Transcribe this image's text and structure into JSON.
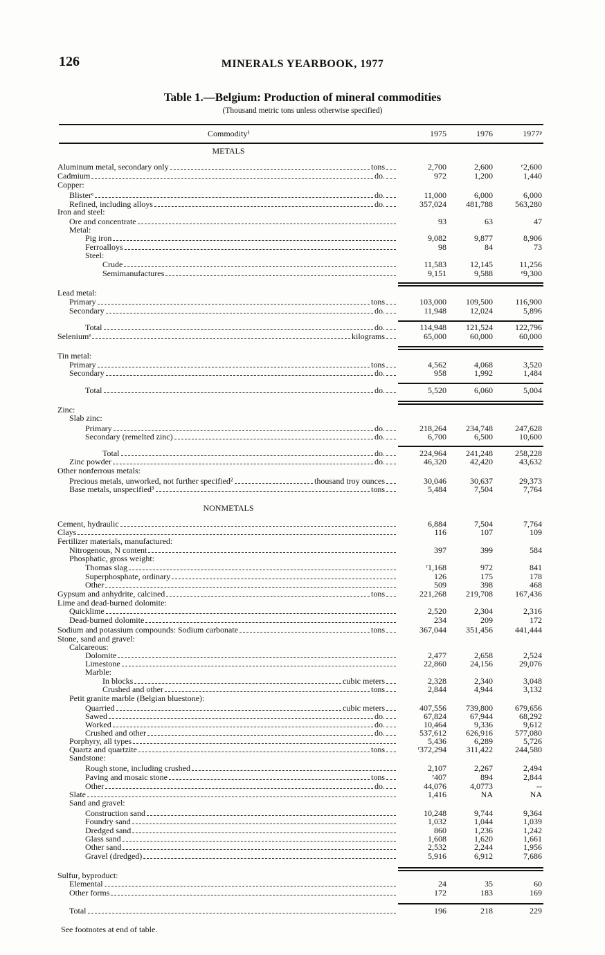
{
  "page_number": "126",
  "running_head": "MINERALS YEARBOOK, 1977",
  "title": "Table 1.—Belgium: Production of mineral commodities",
  "subtitle": "(Thousand metric tons unless otherwise specified)",
  "table": {
    "headers": {
      "commodity": "Commodity¹",
      "y1975": "1975",
      "y1976": "1976",
      "y1977": "1977ᵖ"
    },
    "sections": {
      "metals": "METALS",
      "nonmetals": "NONMETALS"
    },
    "rows": [
      {
        "level": 0,
        "label": "Aluminum metal, secondary only",
        "unit": "tons",
        "values": [
          "2,700",
          "2,600",
          "ᵉ2,600"
        ]
      },
      {
        "level": 0,
        "label": "Cadmium",
        "unit": "do.",
        "values": [
          "972",
          "1,200",
          "1,440"
        ]
      },
      {
        "level": 0,
        "label": "Copper:"
      },
      {
        "level": 1,
        "label": "Blisterᵉ",
        "unit": "do.",
        "values": [
          "11,000",
          "6,000",
          "6,000"
        ]
      },
      {
        "level": 1,
        "label": "Refined, including alloys",
        "unit": "do.",
        "values": [
          "357,024",
          "481,788",
          "563,280"
        ]
      },
      {
        "level": 0,
        "label": "Iron and steel:"
      },
      {
        "level": 1,
        "label": "Ore and concentrate",
        "unit": "",
        "values": [
          "93",
          "63",
          "47"
        ]
      },
      {
        "level": 1,
        "label": "Metal:"
      },
      {
        "level": 2,
        "label": "Pig iron",
        "unit": "",
        "values": [
          "9,082",
          "9,877",
          "8,906"
        ]
      },
      {
        "level": 2,
        "label": "Ferroalloys",
        "unit": "",
        "values": [
          "98",
          "84",
          "73"
        ]
      },
      {
        "level": 2,
        "label": "Steel:"
      },
      {
        "level": 3,
        "label": "Crude",
        "unit": "",
        "values": [
          "11,583",
          "12,145",
          "11,256"
        ]
      },
      {
        "level": 3,
        "label": "Semimanufactures",
        "unit": "",
        "values": [
          "9,151",
          "9,588",
          "ᵉ9,300"
        ]
      },
      {
        "level": 0,
        "label": "Lead metal:"
      },
      {
        "level": 1,
        "label": "Primary",
        "unit": "tons",
        "values": [
          "103,000",
          "109,500",
          "116,900"
        ]
      },
      {
        "level": 1,
        "label": "Secondary",
        "unit": "do.",
        "values": [
          "11,948",
          "12,024",
          "5,896"
        ]
      },
      {
        "level": 2,
        "label": "Total",
        "unit": "do.",
        "values": [
          "114,948",
          "121,524",
          "122,796"
        ]
      },
      {
        "level": 0,
        "label": "Seleniumᵉ",
        "unit": "kilograms",
        "values": [
          "65,000",
          "60,000",
          "60,000"
        ]
      },
      {
        "level": 0,
        "label": "Tin metal:"
      },
      {
        "level": 1,
        "label": "Primary",
        "unit": "tons",
        "values": [
          "4,562",
          "4,068",
          "3,520"
        ]
      },
      {
        "level": 1,
        "label": "Secondary",
        "unit": "do.",
        "values": [
          "958",
          "1,992",
          "1,484"
        ]
      },
      {
        "level": 2,
        "label": "Total",
        "unit": "do.",
        "values": [
          "5,520",
          "6,060",
          "5,004"
        ]
      },
      {
        "level": 0,
        "label": "Zinc:"
      },
      {
        "level": 1,
        "label": "Slab zinc:"
      },
      {
        "level": 2,
        "label": "Primary",
        "unit": "do.",
        "values": [
          "218,264",
          "234,748",
          "247,628"
        ]
      },
      {
        "level": 2,
        "label": "Secondary (remelted zinc)",
        "unit": "do.",
        "values": [
          "6,700",
          "6,500",
          "10,600"
        ]
      },
      {
        "level": 3,
        "label": "Total",
        "unit": "do.",
        "values": [
          "224,964",
          "241,248",
          "258,228"
        ]
      },
      {
        "level": 1,
        "label": "Zinc powder",
        "unit": "do.",
        "values": [
          "46,320",
          "42,420",
          "43,632"
        ]
      },
      {
        "level": 0,
        "label": "Other nonferrous metals:"
      },
      {
        "level": 1,
        "label": "Precious metals, unworked, not further specified²",
        "unit": "thousand troy ounces",
        "values": [
          "30,046",
          "30,637",
          "29,373"
        ]
      },
      {
        "level": 1,
        "label": "Base metals, unspecified³",
        "unit": "tons",
        "values": [
          "5,484",
          "7,504",
          "7,764"
        ]
      },
      {
        "level": 0,
        "label": "Cement, hydraulic",
        "unit": "",
        "values": [
          "6,884",
          "7,504",
          "7,764"
        ]
      },
      {
        "level": 0,
        "label": "Clays",
        "unit": "",
        "values": [
          "116",
          "107",
          "109"
        ]
      },
      {
        "level": 0,
        "label": "Fertilizer materials, manufactured:"
      },
      {
        "level": 1,
        "label": "Nitrogenous, N content",
        "unit": "",
        "values": [
          "397",
          "399",
          "584"
        ]
      },
      {
        "level": 1,
        "label": "Phosphatic, gross weight:"
      },
      {
        "level": 2,
        "label": "Thomas slag",
        "unit": "",
        "values": [
          "ʳ1,168",
          "972",
          "841"
        ]
      },
      {
        "level": 2,
        "label": "Superphosphate, ordinary",
        "unit": "",
        "values": [
          "126",
          "175",
          "178"
        ]
      },
      {
        "level": 2,
        "label": "Other",
        "unit": "",
        "values": [
          "509",
          "398",
          "468"
        ]
      },
      {
        "level": 0,
        "label": "Gypsum and anhydrite, calcined",
        "unit": "tons",
        "values": [
          "221,268",
          "219,708",
          "167,436"
        ]
      },
      {
        "level": 0,
        "label": "Lime and dead-burned dolomite:"
      },
      {
        "level": 1,
        "label": "Quicklime",
        "unit": "",
        "values": [
          "2,520",
          "2,304",
          "2,316"
        ]
      },
      {
        "level": 1,
        "label": "Dead-burned dolomite",
        "unit": "",
        "values": [
          "234",
          "209",
          "172"
        ]
      },
      {
        "level": 0,
        "label": "Sodium and potassium compounds: Sodium carbonate",
        "unit": "tons",
        "values": [
          "367,044",
          "351,456",
          "441,444"
        ]
      },
      {
        "level": 0,
        "label": "Stone, sand and gravel:"
      },
      {
        "level": 1,
        "label": "Calcareous:"
      },
      {
        "level": 2,
        "label": "Dolomite",
        "unit": "",
        "values": [
          "2,477",
          "2,658",
          "2,524"
        ]
      },
      {
        "level": 2,
        "label": "Limestone",
        "unit": "",
        "values": [
          "22,860",
          "24,156",
          "29,076"
        ]
      },
      {
        "level": 2,
        "label": "Marble:"
      },
      {
        "level": 3,
        "label": "In blocks",
        "unit": "cubic meters",
        "values": [
          "2,328",
          "2,340",
          "3,048"
        ]
      },
      {
        "level": 3,
        "label": "Crushed and other",
        "unit": "tons",
        "values": [
          "2,844",
          "4,944",
          "3,132"
        ]
      },
      {
        "level": 1,
        "label": "Petit granite marble (Belgian bluestone):"
      },
      {
        "level": 2,
        "label": "Quarried",
        "unit": "cubic meters",
        "values": [
          "407,556",
          "739,800",
          "679,656"
        ]
      },
      {
        "level": 2,
        "label": "Sawed",
        "unit": "do.",
        "values": [
          "67,824",
          "67,944",
          "68,292"
        ]
      },
      {
        "level": 2,
        "label": "Worked",
        "unit": "do.",
        "values": [
          "10,464",
          "9,336",
          "9,612"
        ]
      },
      {
        "level": 2,
        "label": "Crushed and other",
        "unit": "do.",
        "values": [
          "537,612",
          "626,916",
          "577,080"
        ]
      },
      {
        "level": 1,
        "label": "Porphyry, all types",
        "unit": "",
        "values": [
          "5,436",
          "6,289",
          "5,726"
        ]
      },
      {
        "level": 1,
        "label": "Quartz and quartzite",
        "unit": "tons",
        "values": [
          "ʳ372,294",
          "311,422",
          "244,580"
        ]
      },
      {
        "level": 1,
        "label": "Sandstone:"
      },
      {
        "level": 2,
        "label": "Rough stone, including crushed",
        "unit": "",
        "values": [
          "2,107",
          "2,267",
          "2,494"
        ]
      },
      {
        "level": 2,
        "label": "Paving and mosaic stone",
        "unit": "tons",
        "values": [
          "ʳ407",
          "894",
          "2,844"
        ]
      },
      {
        "level": 2,
        "label": "Other",
        "unit": "do.",
        "values": [
          "44,076",
          "4,0773",
          "--"
        ]
      },
      {
        "level": 1,
        "label": "Slate",
        "unit": "",
        "values": [
          "1,416",
          "NA",
          "NA"
        ]
      },
      {
        "level": 1,
        "label": "Sand and gravel:"
      },
      {
        "level": 2,
        "label": "Construction sand",
        "unit": "",
        "values": [
          "10,248",
          "9,744",
          "9,364"
        ]
      },
      {
        "level": 2,
        "label": "Foundry sand",
        "unit": "",
        "values": [
          "1,032",
          "1,044",
          "1,039"
        ]
      },
      {
        "level": 2,
        "label": "Dredged sand",
        "unit": "",
        "values": [
          "860",
          "1,236",
          "1,242"
        ]
      },
      {
        "level": 2,
        "label": "Glass sand",
        "unit": "",
        "values": [
          "1,608",
          "1,620",
          "1,661"
        ]
      },
      {
        "level": 2,
        "label": "Other sand",
        "unit": "",
        "values": [
          "2,532",
          "2,244",
          "1,956"
        ]
      },
      {
        "level": 2,
        "label": "Gravel (dredged)",
        "unit": "",
        "values": [
          "5,916",
          "6,912",
          "7,686"
        ]
      },
      {
        "level": 0,
        "label": "Sulfur, byproduct:"
      },
      {
        "level": 1,
        "label": "Elemental",
        "unit": "",
        "values": [
          "24",
          "35",
          "60"
        ]
      },
      {
        "level": 1,
        "label": "Other forms",
        "unit": "",
        "values": [
          "172",
          "183",
          "169"
        ]
      },
      {
        "level": 1,
        "label": "Total",
        "unit": "",
        "values": [
          "196",
          "218",
          "229"
        ]
      }
    ]
  },
  "footnote": "See footnotes at end of table."
}
